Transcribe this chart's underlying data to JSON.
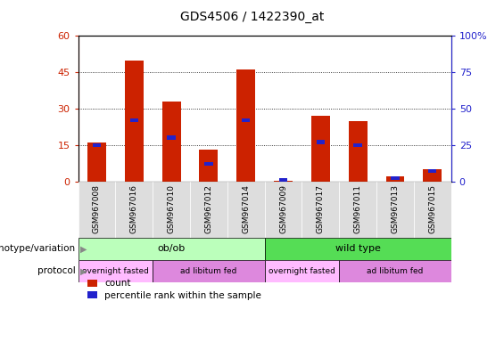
{
  "title": "GDS4506 / 1422390_at",
  "samples": [
    "GSM967008",
    "GSM967016",
    "GSM967010",
    "GSM967012",
    "GSM967014",
    "GSM967009",
    "GSM967017",
    "GSM967011",
    "GSM967013",
    "GSM967015"
  ],
  "counts": [
    16,
    50,
    33,
    13,
    46,
    0.3,
    27,
    25,
    2,
    5
  ],
  "percentiles": [
    25,
    42,
    30,
    12,
    42,
    1,
    27,
    25,
    2,
    7
  ],
  "ylim_left": [
    0,
    60
  ],
  "ylim_right": [
    0,
    100
  ],
  "yticks_left": [
    0,
    15,
    30,
    45,
    60
  ],
  "ytick_labels_left": [
    "0",
    "15",
    "30",
    "45",
    "60"
  ],
  "yticks_right": [
    0,
    25,
    50,
    75,
    100
  ],
  "ytick_labels_right": [
    "0",
    "25",
    "50",
    "75",
    "100%"
  ],
  "bar_color": "#cc2200",
  "percentile_color": "#2222cc",
  "bar_width": 0.5,
  "genotype_groups": [
    {
      "label": "ob/ob",
      "start": 0,
      "end": 5,
      "color": "#bbffbb"
    },
    {
      "label": "wild type",
      "start": 5,
      "end": 10,
      "color": "#55dd55"
    }
  ],
  "protocol_groups": [
    {
      "label": "overnight fasted",
      "start": 0,
      "end": 2,
      "color": "#ffbbff"
    },
    {
      "label": "ad libitum fed",
      "start": 2,
      "end": 5,
      "color": "#dd88dd"
    },
    {
      "label": "overnight fasted",
      "start": 5,
      "end": 7,
      "color": "#ffbbff"
    },
    {
      "label": "ad libitum fed",
      "start": 7,
      "end": 10,
      "color": "#dd88dd"
    }
  ],
  "legend_count_color": "#cc2200",
  "legend_percentile_color": "#2222cc",
  "label_color_left": "#cc2200",
  "label_color_right": "#2222cc",
  "genotype_label": "genotype/variation",
  "protocol_label": "protocol",
  "legend_count_label": "count",
  "legend_percentile_label": "percentile rank within the sample"
}
